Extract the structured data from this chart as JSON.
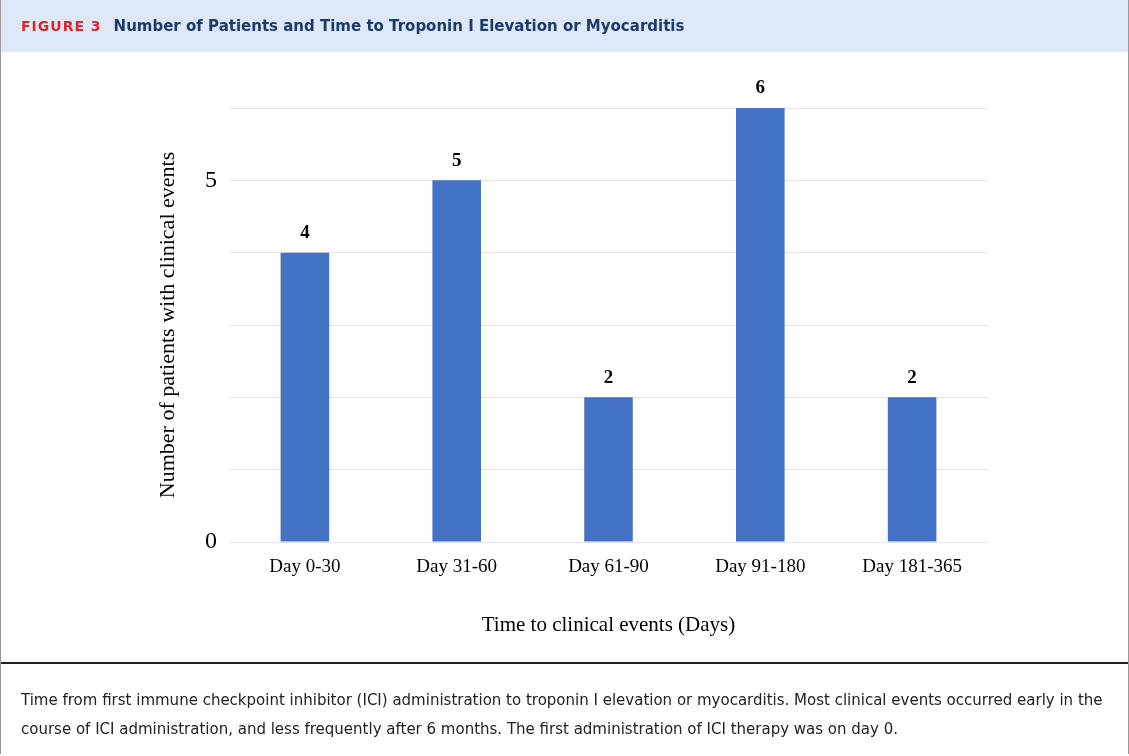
{
  "chart_data": {
    "type": "bar",
    "title": "Number of Patients and Time to Troponin I Elevation or Myocarditis",
    "categories": [
      "Day 0-30",
      "Day 31-60",
      "Day 61-90",
      "Day 91-180",
      "Day 181-365"
    ],
    "values": [
      4,
      5,
      2,
      6,
      2
    ],
    "color": "#4472c4",
    "xlabel": "Time to clinical events (Days)",
    "ylabel": "Number of patients with clinical events",
    "ylim": [
      0,
      6
    ],
    "yticks": [
      0,
      {
        "value": 1,
        "label": null
      },
      {
        "value": 2,
        "label": null
      },
      {
        "value": 3,
        "label": null
      },
      {
        "value": 4,
        "label": null
      },
      5,
      {
        "value": 6,
        "label": null
      }
    ],
    "grid": "y",
    "data_labels": true,
    "legend": false,
    "annotations": [
      "FIGURE 3",
      "Time from first immune checkpoint inhibitor (ICI) administration to troponin I elevation or myocarditis. Most clinical events occurred early in the course of ICI administration, and less frequently after 6 months. The first administration of ICI therapy was on day 0."
    ]
  }
}
